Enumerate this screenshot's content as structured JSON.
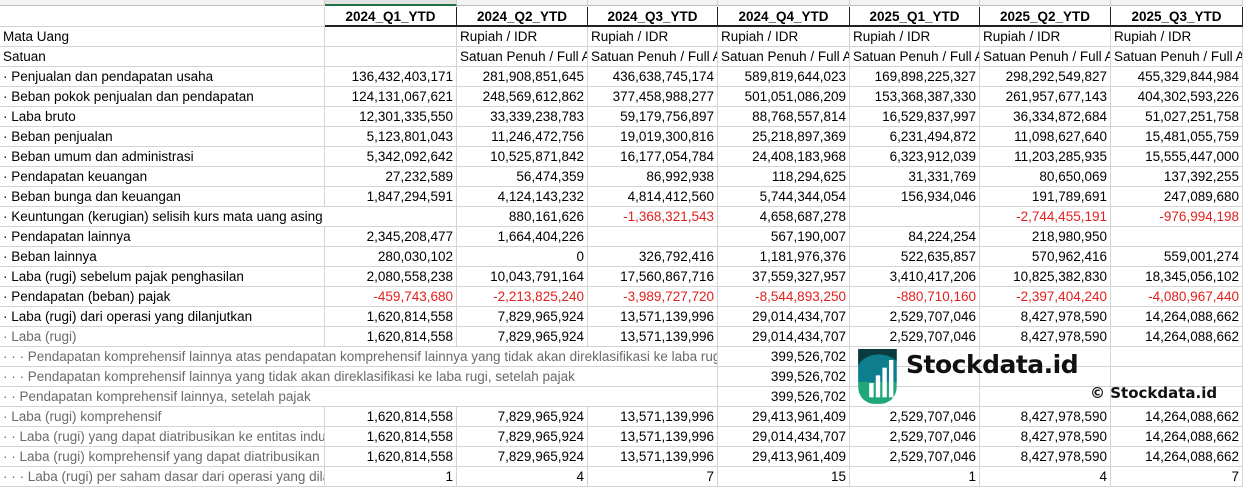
{
  "columns": [
    "2024_Q1_YTD",
    "2024_Q2_YTD",
    "2024_Q3_YTD",
    "2024_Q4_YTD",
    "2025_Q1_YTD",
    "2025_Q2_YTD",
    "2025_Q3_YTD"
  ],
  "meta_rows": [
    {
      "label": "Mata Uang",
      "values": [
        "",
        "Rupiah / IDR",
        "Rupiah / IDR",
        "Rupiah / IDR",
        "Rupiah / IDR",
        "Rupiah / IDR",
        "Rupiah / IDR"
      ]
    },
    {
      "label": "Satuan",
      "values": [
        "",
        "Satuan Penuh / Full Amount",
        "Satuan Penuh / Full Amount",
        "Satuan Penuh / Full Amount",
        "Satuan Penuh / Full Amount",
        "Satuan Penuh / Full Amount",
        "Satuan Penuh / Full Amount"
      ]
    }
  ],
  "rows": [
    {
      "label": "· Penjualan dan pendapatan usaha",
      "values": [
        "136,432,403,171",
        "281,908,851,645",
        "436,638,745,174",
        "589,819,644,023",
        "169,898,225,327",
        "298,292,549,827",
        "455,329,844,984"
      ]
    },
    {
      "label": "· Beban pokok penjualan dan pendapatan",
      "values": [
        "124,131,067,621",
        "248,569,612,862",
        "377,458,988,277",
        "501,051,086,209",
        "153,368,387,330",
        "261,957,677,143",
        "404,302,593,226"
      ]
    },
    {
      "label": "· Laba bruto",
      "values": [
        "12,301,335,550",
        "33,339,238,783",
        "59,179,756,897",
        "88,768,557,814",
        "16,529,837,997",
        "36,334,872,684",
        "51,027,251,758"
      ]
    },
    {
      "label": "· Beban penjualan",
      "values": [
        "5,123,801,043",
        "11,246,472,756",
        "19,019,300,816",
        "25,218,897,369",
        "6,231,494,872",
        "11,098,627,640",
        "15,481,055,759"
      ]
    },
    {
      "label": "· Beban umum dan administrasi",
      "values": [
        "5,342,092,642",
        "10,525,871,842",
        "16,177,054,784",
        "24,408,183,968",
        "6,323,912,039",
        "11,203,285,935",
        "15,555,447,000"
      ]
    },
    {
      "label": "· Pendapatan keuangan",
      "values": [
        "27,232,589",
        "56,474,359",
        "86,992,938",
        "118,294,625",
        "31,331,769",
        "80,650,069",
        "137,392,255"
      ]
    },
    {
      "label": "· Beban bunga dan keuangan",
      "values": [
        "1,847,294,591",
        "4,124,143,232",
        "4,814,412,560",
        "5,744,344,054",
        "156,934,046",
        "191,789,691",
        "247,089,680"
      ]
    },
    {
      "label": "· Keuntungan (kerugian) selisih kurs mata uang asing",
      "values": [
        "",
        "880,161,626",
        "-1,368,321,543",
        "4,658,687,278",
        "",
        "-2,744,455,191",
        "-976,994,198"
      ]
    },
    {
      "label": "· Pendapatan lainnya",
      "values": [
        "2,345,208,477",
        "1,664,404,226",
        "",
        "567,190,007",
        "84,224,254",
        "218,980,950",
        ""
      ]
    },
    {
      "label": "· Beban lainnya",
      "values": [
        "280,030,102",
        "0",
        "326,792,416",
        "1,181,976,376",
        "522,635,857",
        "570,962,416",
        "559,001,274"
      ]
    },
    {
      "label": "· Laba (rugi) sebelum pajak penghasilan",
      "values": [
        "2,080,558,238",
        "10,043,791,164",
        "17,560,867,716",
        "37,559,327,957",
        "3,410,417,206",
        "10,825,382,830",
        "18,345,056,102"
      ]
    },
    {
      "label": "· Pendapatan (beban) pajak",
      "values": [
        "-459,743,680",
        "-2,213,825,240",
        "-3,989,727,720",
        "-8,544,893,250",
        "-880,710,160",
        "-2,397,404,240",
        "-4,080,967,440"
      ]
    },
    {
      "label": "· Laba (rugi) dari operasi yang dilanjutkan",
      "values": [
        "1,620,814,558",
        "7,829,965,924",
        "13,571,139,996",
        "29,014,434,707",
        "2,529,707,046",
        "8,427,978,590",
        "14,264,088,662"
      ]
    },
    {
      "label": "· Laba (rugi)",
      "gray": true,
      "values": [
        "1,620,814,558",
        "7,829,965,924",
        "13,571,139,996",
        "29,014,434,707",
        "2,529,707,046",
        "8,427,978,590",
        "14,264,088,662"
      ]
    },
    {
      "label": "· · · Pendapatan komprehensif lainnya atas pendapatan komprehensif lainnya yang tidak akan direklasifikasi ke laba rugi, setelah pajak",
      "gray": true,
      "values": [
        "",
        "",
        "",
        "399,526,702",
        "",
        "",
        ""
      ]
    },
    {
      "label": "· · · Pendapatan komprehensif lainnya yang tidak akan direklasifikasi ke laba rugi, setelah pajak",
      "gray": true,
      "values": [
        "",
        "",
        "",
        "399,526,702",
        "",
        "",
        ""
      ]
    },
    {
      "label": "· · Pendapatan komprehensif lainnya, setelah pajak",
      "gray": true,
      "values": [
        "",
        "",
        "",
        "399,526,702",
        "",
        "",
        ""
      ]
    },
    {
      "label": "· Laba (rugi) komprehensif",
      "gray": true,
      "values": [
        "1,620,814,558",
        "7,829,965,924",
        "13,571,139,996",
        "29,413,961,409",
        "2,529,707,046",
        "8,427,978,590",
        "14,264,088,662"
      ]
    },
    {
      "label": "· · Laba (rugi) yang dapat diatribusikan ke entitas induk",
      "gray": true,
      "values": [
        "1,620,814,558",
        "7,829,965,924",
        "13,571,139,996",
        "29,014,434,707",
        "2,529,707,046",
        "8,427,978,590",
        "14,264,088,662"
      ]
    },
    {
      "label": "· · Laba (rugi) komprehensif yang dapat diatribusikan",
      "gray": true,
      "values": [
        "1,620,814,558",
        "7,829,965,924",
        "13,571,139,996",
        "29,413,961,409",
        "2,529,707,046",
        "8,427,978,590",
        "14,264,088,662"
      ]
    },
    {
      "label": "· · · Laba (rugi) per saham dasar dari operasi yang dilanjutkan",
      "gray": true,
      "values": [
        "1",
        "4",
        "7",
        "15",
        "1",
        "4",
        "7"
      ]
    }
  ],
  "watermark": {
    "small": "© Stockdata.id",
    "big": "Stockdata.id"
  }
}
